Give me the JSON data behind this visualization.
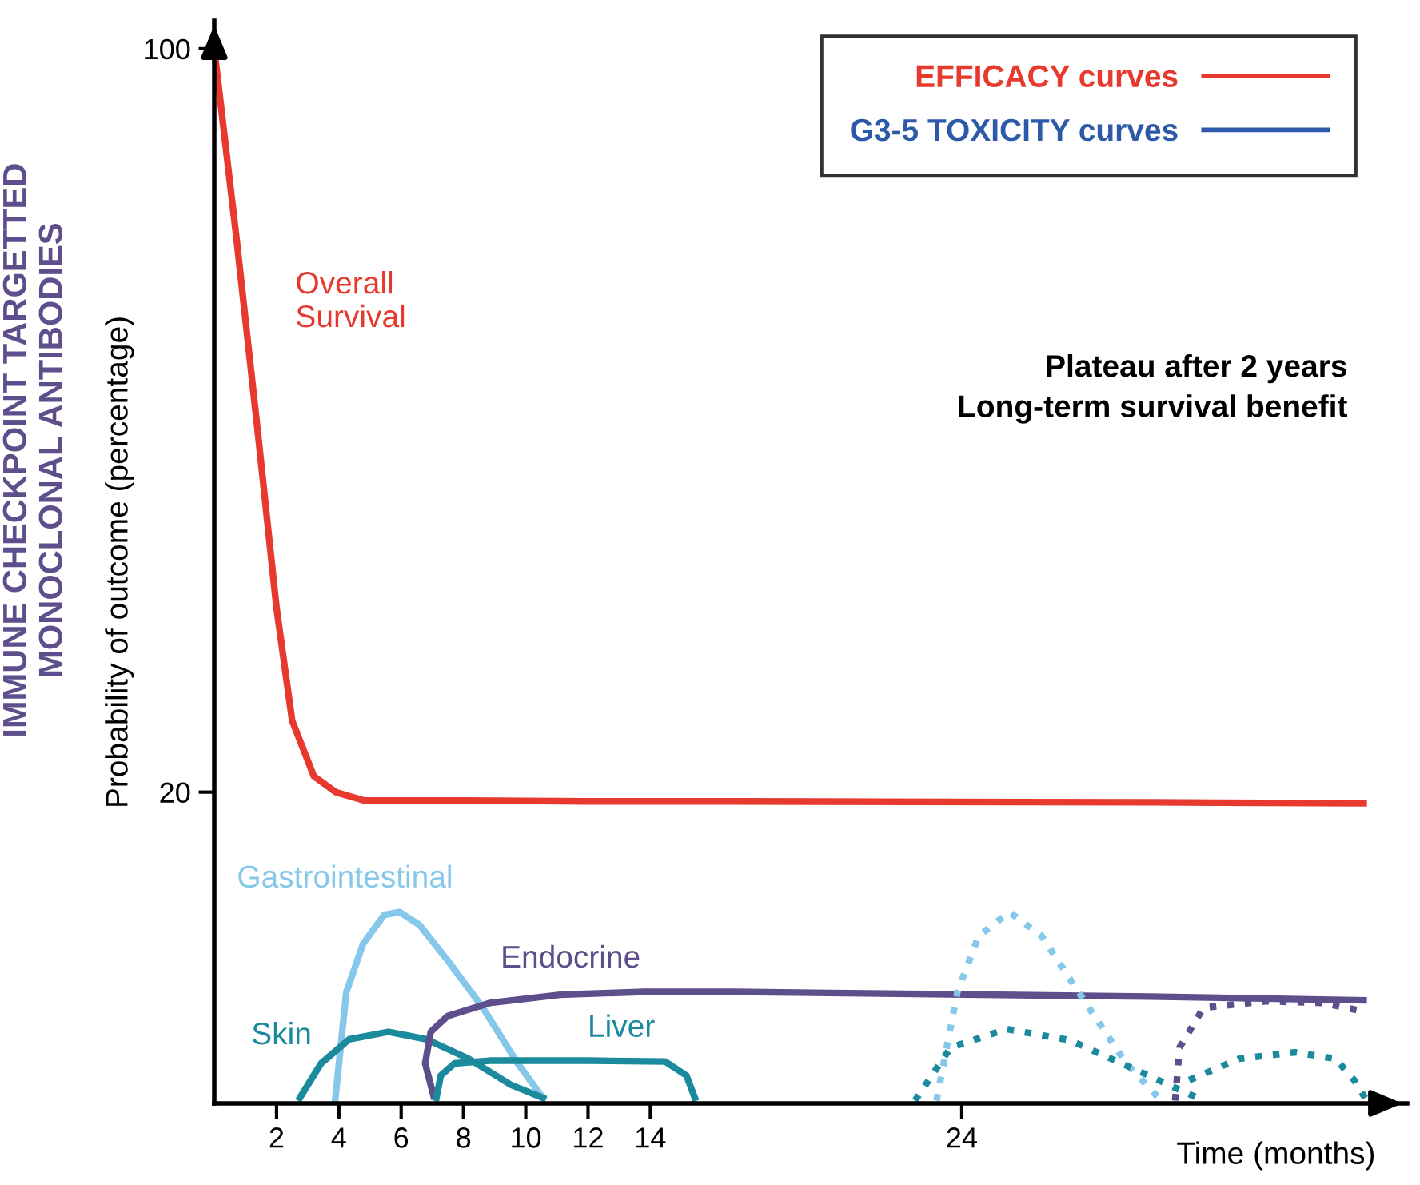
{
  "chart_data": {
    "type": "line",
    "title": "IMMUNE CHECKPOINT TARGETTED\nMONOCLONAL ANTIBODIES",
    "ylabel": "Probability of outcome (percentage)",
    "xlabel": "Time (months)",
    "xlim": [
      0,
      38.3
    ],
    "ylim": [
      -13.5,
      103
    ],
    "xticks": [
      2,
      4,
      6,
      8,
      10,
      12,
      14,
      24
    ],
    "yticks": [
      20,
      100
    ],
    "marker": "none",
    "line_style": "solid",
    "legend": "top right",
    "annotations": [
      "Plateau after 2 years\nLong-term survival benefit"
    ],
    "series": [
      {
        "name": "Overall\nSurvival",
        "color": "#e8392f",
        "x": [
          0,
          0.72,
          1.4,
          2.0,
          2.5,
          3.2,
          3.9,
          4.8,
          8,
          12,
          16.7,
          30,
          36.9
        ],
        "values": [
          100,
          79.4,
          58.7,
          39.8,
          27.7,
          21.7,
          20,
          19.1,
          19.1,
          19.0,
          19.0,
          18.9,
          18.8
        ]
      },
      {
        "name": "Gastrointestinal",
        "color": "#86c8ea",
        "x": [
          3.88,
          4.24,
          4.78,
          5.46,
          5.95,
          6.59,
          7.49,
          8.62,
          9.74,
          10.55
        ],
        "values": [
          -13.2,
          -1.5,
          3.7,
          6.8,
          7.1,
          5.7,
          1.9,
          -3.2,
          -9.2,
          -12.9
        ]
      },
      {
        "name": "Skin",
        "color": "#1a8a9c",
        "x": [
          2.75,
          3.43,
          4.33,
          5.59,
          6.81,
          8.17,
          9.52,
          10.55
        ],
        "values": [
          -12.9,
          -9.2,
          -6.6,
          -5.8,
          -6.6,
          -8.7,
          -11.5,
          -12.9
        ]
      },
      {
        "name": "Endocrine",
        "color": "#5e4f8c",
        "x": [
          7.04,
          6.77,
          6.95,
          7.49,
          8.84,
          11.1,
          13.8,
          16.7,
          30,
          36.9
        ],
        "values": [
          -12.7,
          -9.2,
          -5.8,
          -4.1,
          -2.7,
          -1.8,
          -1.5,
          -1.5,
          -2.0,
          -2.4
        ]
      },
      {
        "name": "Liver",
        "color": "#1a8a9c",
        "x": [
          7.13,
          7.27,
          7.71,
          8.84,
          12.0,
          14.48,
          15.16,
          15.43
        ],
        "values": [
          -12.9,
          -10.5,
          -9.2,
          -8.9,
          -8.9,
          -9.0,
          -10.5,
          -12.9
        ]
      },
      {
        "color": "#86c8ea",
        "line_style": "dotted",
        "x": [
          23.19,
          23.86,
          24.54,
          25.53,
          26.57,
          27.92,
          29.28,
          30.4
        ],
        "values": [
          -13.2,
          -1.5,
          4.5,
          7.1,
          4.5,
          -2.4,
          -9.2,
          -13.2
        ]
      },
      {
        "color": "#1a8a9c",
        "line_style": "dotted",
        "x": [
          22.5,
          23.64,
          25.44,
          27.47,
          29.73,
          31.76
        ],
        "values": [
          -13.2,
          -7.5,
          -5.5,
          -6.7,
          -10.1,
          -13.2
        ]
      },
      {
        "color": "#5e4f8c",
        "line_style": "dotted",
        "x": [
          30.85,
          30.99,
          31.76,
          33.8,
          35.6,
          36.9
        ],
        "values": [
          -13.2,
          -7.5,
          -3.2,
          -2.5,
          -2.7,
          -3.6
        ]
      },
      {
        "color": "#1a8a9c",
        "line_style": "dotted",
        "x": [
          31.3,
          32.9,
          34.7,
          36.0,
          36.6,
          37.0
        ],
        "values": [
          -11,
          -8.7,
          -8.0,
          -8.7,
          -11,
          -13.2
        ]
      },
      {
        "name": "EFFICACY curves",
        "color": "#e8392f",
        "values": [
          null
        ]
      },
      {
        "name": "G3-5 TOXICITY curves",
        "color": "#2c5aa8",
        "values": [
          null
        ]
      }
    ]
  }
}
